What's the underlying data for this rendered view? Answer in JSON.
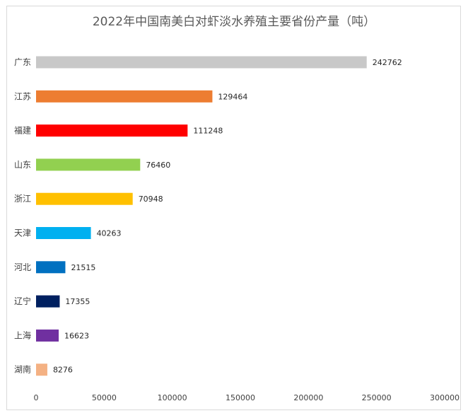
{
  "chart_data": {
    "type": "bar",
    "orientation": "horizontal",
    "title": "2022年中国南美白对虾淡水养殖主要省份产量（吨）",
    "categories": [
      "广东",
      "江苏",
      "福建",
      "山东",
      "浙江",
      "天津",
      "河北",
      "辽宁",
      "上海",
      "湖南"
    ],
    "values": [
      242762,
      129464,
      111248,
      76460,
      70948,
      40263,
      21515,
      17355,
      16623,
      8276
    ],
    "colors": [
      "#c8c8c8",
      "#ed7d31",
      "#ff0000",
      "#92d050",
      "#ffc000",
      "#00b0f0",
      "#0070c0",
      "#002060",
      "#7030a0",
      "#f4b183"
    ],
    "xlim": [
      0,
      300000
    ],
    "xticks": [
      0,
      50000,
      100000,
      150000,
      200000,
      250000,
      300000
    ],
    "xtick_labels": [
      "0",
      "50000",
      "100000",
      "150000",
      "200000",
      "250000",
      "300000"
    ],
    "grid": false,
    "legend": "none",
    "data_labels": true
  }
}
